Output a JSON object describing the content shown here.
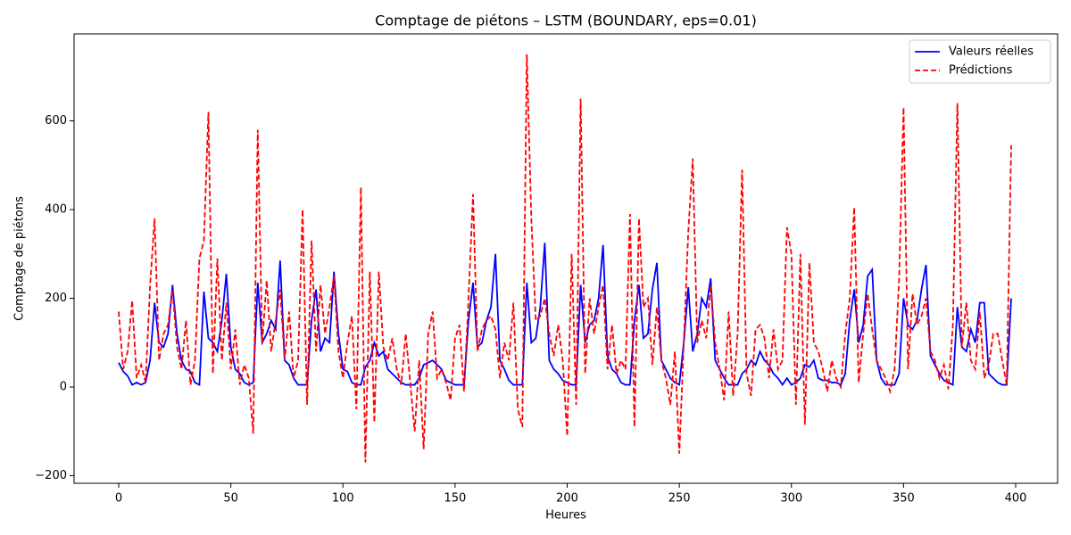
{
  "chart_data": {
    "type": "line",
    "title": "Comptage de piétons – LSTM (BOUNDARY, eps=0.01)",
    "xlabel": "Heures",
    "ylabel": "Comptage de piétons",
    "xlim": [
      -19.9,
      418.7
    ],
    "ylim": [
      -217,
      796
    ],
    "xticks": [
      0,
      50,
      100,
      150,
      200,
      250,
      300,
      350,
      400
    ],
    "yticks": [
      {
        "value": -200,
        "label": "−200"
      },
      0,
      200,
      400,
      600
    ],
    "legend": "upper right",
    "x": [
      0,
      2,
      4,
      6,
      8,
      10,
      12,
      14,
      16,
      18,
      20,
      22,
      24,
      26,
      28,
      30,
      32,
      34,
      36,
      38,
      40,
      42,
      44,
      46,
      48,
      50,
      52,
      54,
      56,
      58,
      60,
      62,
      64,
      66,
      68,
      70,
      72,
      74,
      76,
      78,
      80,
      82,
      84,
      86,
      88,
      90,
      92,
      94,
      96,
      98,
      100,
      102,
      104,
      106,
      108,
      110,
      112,
      114,
      116,
      118,
      120,
      122,
      124,
      126,
      128,
      130,
      132,
      134,
      136,
      138,
      140,
      142,
      144,
      146,
      148,
      150,
      152,
      154,
      156,
      158,
      160,
      162,
      164,
      166,
      168,
      170,
      172,
      174,
      176,
      178,
      180,
      182,
      184,
      186,
      188,
      190,
      192,
      194,
      196,
      198,
      200,
      202,
      204,
      206,
      208,
      210,
      212,
      214,
      216,
      218,
      220,
      222,
      224,
      226,
      228,
      230,
      232,
      234,
      236,
      238,
      240,
      242,
      244,
      246,
      248,
      250,
      252,
      254,
      256,
      258,
      260,
      262,
      264,
      266,
      268,
      270,
      272,
      274,
      276,
      278,
      280,
      282,
      284,
      286,
      288,
      290,
      292,
      294,
      296,
      298,
      300,
      302,
      304,
      306,
      308,
      310,
      312,
      314,
      316,
      318,
      320,
      322,
      324,
      326,
      328,
      330,
      332,
      334,
      336,
      338,
      340,
      342,
      344,
      346,
      348,
      350,
      352,
      354,
      356,
      358,
      360,
      362,
      364,
      366,
      368,
      370,
      372,
      374,
      376,
      378,
      380,
      382,
      384,
      386,
      388,
      390,
      392,
      394,
      396,
      398
    ],
    "series": [
      {
        "name": "Valeurs réelles",
        "color": "#0000ff",
        "linestyle": "solid",
        "values": [
          55,
          35,
          25,
          5,
          10,
          5,
          10,
          60,
          190,
          100,
          90,
          120,
          230,
          120,
          60,
          40,
          35,
          10,
          5,
          215,
          110,
          100,
          80,
          150,
          255,
          90,
          40,
          30,
          10,
          5,
          10,
          235,
          100,
          120,
          150,
          130,
          285,
          60,
          50,
          20,
          5,
          5,
          5,
          150,
          220,
          80,
          110,
          100,
          260,
          120,
          40,
          35,
          10,
          5,
          5,
          45,
          60,
          100,
          70,
          80,
          40,
          30,
          20,
          10,
          5,
          5,
          5,
          20,
          50,
          55,
          60,
          50,
          40,
          15,
          10,
          5,
          5,
          5,
          150,
          235,
          90,
          100,
          150,
          180,
          300,
          60,
          40,
          15,
          5,
          5,
          5,
          235,
          100,
          110,
          180,
          325,
          60,
          40,
          30,
          15,
          10,
          5,
          5,
          230,
          100,
          140,
          150,
          200,
          320,
          70,
          40,
          30,
          10,
          5,
          5,
          150,
          230,
          110,
          120,
          220,
          280,
          60,
          40,
          20,
          10,
          5,
          100,
          225,
          80,
          120,
          200,
          180,
          245,
          60,
          40,
          20,
          5,
          5,
          5,
          30,
          40,
          60,
          50,
          80,
          60,
          50,
          30,
          20,
          5,
          20,
          5,
          10,
          20,
          50,
          45,
          60,
          20,
          15,
          15,
          10,
          10,
          5,
          30,
          150,
          220,
          100,
          140,
          250,
          265,
          60,
          20,
          5,
          5,
          5,
          30,
          200,
          140,
          130,
          150,
          220,
          275,
          70,
          50,
          30,
          15,
          10,
          5,
          180,
          90,
          80,
          130,
          100,
          190,
          190,
          30,
          20,
          10,
          5,
          5,
          200
        ]
      },
      {
        "name": "Prédictions",
        "color": "#ff0000",
        "linestyle": "dashed",
        "values": [
          170,
          40,
          80,
          195,
          20,
          50,
          10,
          230,
          380,
          60,
          120,
          140,
          220,
          90,
          40,
          150,
          5,
          60,
          290,
          330,
          620,
          30,
          290,
          60,
          190,
          40,
          130,
          5,
          50,
          20,
          -105,
          580,
          100,
          240,
          80,
          150,
          220,
          60,
          170,
          20,
          60,
          400,
          -40,
          330,
          80,
          230,
          120,
          180,
          250,
          80,
          20,
          100,
          160,
          -50,
          450,
          -170,
          260,
          -80,
          260,
          90,
          60,
          110,
          40,
          5,
          120,
          10,
          -100,
          60,
          -140,
          120,
          170,
          20,
          40,
          10,
          -30,
          110,
          140,
          -10,
          200,
          435,
          80,
          130,
          150,
          160,
          130,
          20,
          100,
          60,
          190,
          -50,
          -90,
          750,
          380,
          150,
          160,
          200,
          120,
          70,
          140,
          60,
          -110,
          300,
          -40,
          650,
          30,
          200,
          120,
          180,
          230,
          40,
          140,
          30,
          60,
          40,
          390,
          -90,
          380,
          180,
          200,
          50,
          180,
          60,
          20,
          -40,
          80,
          -150,
          100,
          350,
          515,
          100,
          150,
          110,
          230,
          100,
          40,
          -30,
          170,
          -20,
          120,
          490,
          30,
          -20,
          130,
          140,
          110,
          20,
          130,
          40,
          60,
          360,
          300,
          -40,
          300,
          -85,
          280,
          100,
          80,
          40,
          -10,
          60,
          20,
          0,
          120,
          200,
          405,
          10,
          120,
          210,
          130,
          60,
          40,
          20,
          -10,
          40,
          240,
          630,
          40,
          210,
          140,
          160,
          200,
          80,
          60,
          20,
          50,
          -5,
          140,
          640,
          90,
          190,
          60,
          40,
          170,
          20,
          50,
          120,
          120,
          60,
          5,
          545
        ]
      }
    ]
  }
}
